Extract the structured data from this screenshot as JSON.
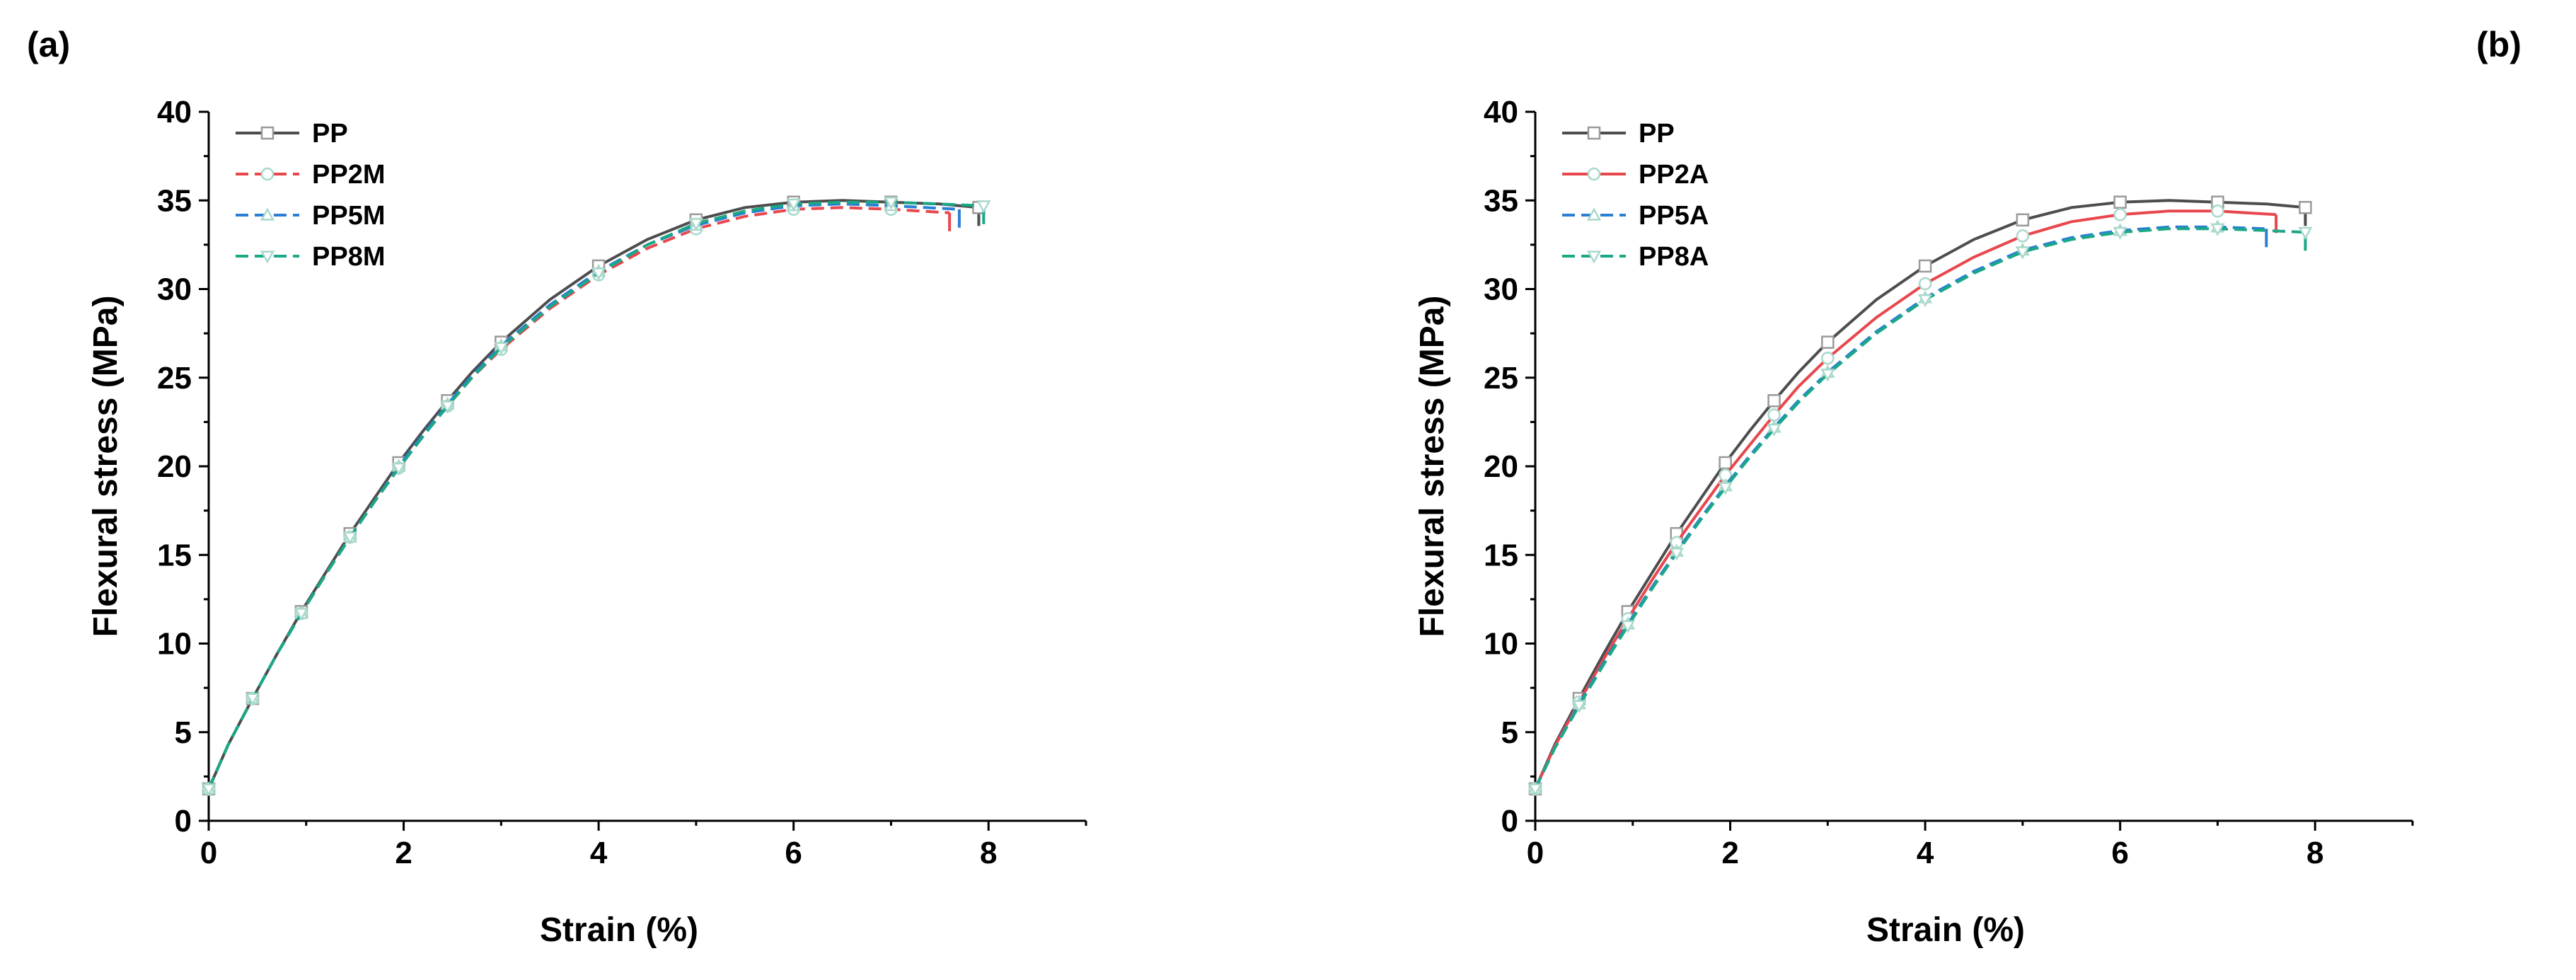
{
  "chart_data": [
    {
      "panel_label": "(a)",
      "type": "line",
      "xlabel": "Strain (%)",
      "ylabel": "Flexural stress (MPa)",
      "xlim": [
        0,
        9
      ],
      "ylim": [
        0,
        40
      ],
      "xticks": [
        0,
        2,
        4,
        6,
        8
      ],
      "yticks": [
        0,
        5,
        10,
        15,
        20,
        25,
        30,
        35,
        40
      ],
      "legend_position": "top-left",
      "series": [
        {
          "name": "PP",
          "color": "#4d4d4d",
          "marker": "square",
          "dash": "solid",
          "x": [
            0,
            0.2,
            0.45,
            0.7,
            0.95,
            1.2,
            1.45,
            1.7,
            1.95,
            2.2,
            2.45,
            2.7,
            3.0,
            3.5,
            4.0,
            4.5,
            5.0,
            5.5,
            6.0,
            6.5,
            7.0,
            7.5,
            7.9
          ],
          "y": [
            1.8,
            4.3,
            6.9,
            9.4,
            11.8,
            14.0,
            16.2,
            18.2,
            20.2,
            22.0,
            23.7,
            25.3,
            27.0,
            29.4,
            31.3,
            32.8,
            33.9,
            34.6,
            34.9,
            35.0,
            34.9,
            34.8,
            34.6
          ]
        },
        {
          "name": "PP2M",
          "color": "#e8474d",
          "marker": "circle",
          "dash": "dashed",
          "x": [
            0,
            0.2,
            0.45,
            0.7,
            0.95,
            1.2,
            1.45,
            1.7,
            1.95,
            2.2,
            2.45,
            2.7,
            3.0,
            3.5,
            4.0,
            4.5,
            5.0,
            5.5,
            6.0,
            6.5,
            7.0,
            7.6
          ],
          "y": [
            1.8,
            4.3,
            6.9,
            9.4,
            11.7,
            13.9,
            16.0,
            18.0,
            19.9,
            21.7,
            23.4,
            25.0,
            26.6,
            28.9,
            30.8,
            32.3,
            33.4,
            34.1,
            34.5,
            34.6,
            34.5,
            34.3
          ]
        },
        {
          "name": "PP5M",
          "color": "#2a7fd4",
          "marker": "triangle",
          "dash": "dashed",
          "x": [
            0,
            0.2,
            0.45,
            0.7,
            0.95,
            1.2,
            1.45,
            1.7,
            1.95,
            2.2,
            2.45,
            2.7,
            3.0,
            3.5,
            4.0,
            4.5,
            5.0,
            5.5,
            6.0,
            6.5,
            7.0,
            7.7
          ],
          "y": [
            1.8,
            4.3,
            6.9,
            9.4,
            11.7,
            13.9,
            16.0,
            18.0,
            20.0,
            21.8,
            23.5,
            25.1,
            26.8,
            29.1,
            31.0,
            32.5,
            33.6,
            34.3,
            34.7,
            34.8,
            34.7,
            34.5
          ]
        },
        {
          "name": "PP8M",
          "color": "#1aa886",
          "marker": "inverted-triangle",
          "dash": "dashed",
          "x": [
            0,
            0.2,
            0.45,
            0.7,
            0.95,
            1.2,
            1.45,
            1.7,
            1.95,
            2.2,
            2.45,
            2.7,
            3.0,
            3.5,
            4.0,
            4.5,
            5.0,
            5.5,
            6.0,
            6.5,
            7.0,
            7.5,
            7.95
          ],
          "y": [
            1.8,
            4.3,
            6.9,
            9.4,
            11.7,
            13.9,
            16.0,
            18.0,
            19.9,
            21.7,
            23.4,
            25.0,
            26.7,
            29.0,
            30.9,
            32.5,
            33.7,
            34.4,
            34.8,
            34.9,
            34.9,
            34.8,
            34.7
          ]
        }
      ]
    },
    {
      "panel_label": "(b)",
      "type": "line",
      "xlabel": "Strain (%)",
      "ylabel": "Flexural stress (MPa)",
      "xlim": [
        0,
        9
      ],
      "ylim": [
        0,
        40
      ],
      "xticks": [
        0,
        2,
        4,
        6,
        8
      ],
      "yticks": [
        0,
        5,
        10,
        15,
        20,
        25,
        30,
        35,
        40
      ],
      "legend_position": "top-left",
      "series": [
        {
          "name": "PP",
          "color": "#4d4d4d",
          "marker": "square",
          "dash": "solid",
          "x": [
            0,
            0.2,
            0.45,
            0.7,
            0.95,
            1.2,
            1.45,
            1.7,
            1.95,
            2.2,
            2.45,
            2.7,
            3.0,
            3.5,
            4.0,
            4.5,
            5.0,
            5.5,
            6.0,
            6.5,
            7.0,
            7.5,
            7.9
          ],
          "y": [
            1.8,
            4.3,
            6.9,
            9.4,
            11.8,
            14.0,
            16.2,
            18.2,
            20.2,
            22.0,
            23.7,
            25.3,
            27.0,
            29.4,
            31.3,
            32.8,
            33.9,
            34.6,
            34.9,
            35.0,
            34.9,
            34.8,
            34.6
          ]
        },
        {
          "name": "PP2A",
          "color": "#e8474d",
          "marker": "circle",
          "dash": "solid",
          "x": [
            0,
            0.2,
            0.45,
            0.7,
            0.95,
            1.2,
            1.45,
            1.7,
            1.95,
            2.2,
            2.45,
            2.7,
            3.0,
            3.5,
            4.0,
            4.5,
            5.0,
            5.5,
            6.0,
            6.5,
            7.0,
            7.6
          ],
          "y": [
            1.8,
            4.2,
            6.7,
            9.1,
            11.4,
            13.6,
            15.7,
            17.6,
            19.5,
            21.2,
            22.9,
            24.5,
            26.1,
            28.4,
            30.3,
            31.8,
            33.0,
            33.8,
            34.2,
            34.4,
            34.4,
            34.2
          ]
        },
        {
          "name": "PP5A",
          "color": "#2a7fd4",
          "marker": "triangle",
          "dash": "dashed",
          "x": [
            0,
            0.2,
            0.45,
            0.7,
            0.95,
            1.2,
            1.45,
            1.7,
            1.95,
            2.2,
            2.45,
            2.7,
            3.0,
            3.5,
            4.0,
            4.5,
            5.0,
            5.5,
            6.0,
            6.5,
            7.0,
            7.5
          ],
          "y": [
            1.8,
            4.1,
            6.6,
            8.9,
            11.1,
            13.2,
            15.2,
            17.1,
            18.9,
            20.6,
            22.2,
            23.7,
            25.3,
            27.6,
            29.5,
            31.0,
            32.2,
            32.9,
            33.3,
            33.5,
            33.5,
            33.4
          ]
        },
        {
          "name": "PP8A",
          "color": "#1aa886",
          "marker": "inverted-triangle",
          "dash": "dashed",
          "x": [
            0,
            0.2,
            0.45,
            0.7,
            0.95,
            1.2,
            1.45,
            1.7,
            1.95,
            2.2,
            2.45,
            2.7,
            3.0,
            3.5,
            4.0,
            4.5,
            5.0,
            5.5,
            6.0,
            6.5,
            7.0,
            7.5,
            7.9
          ],
          "y": [
            1.8,
            4.1,
            6.5,
            8.8,
            11.0,
            13.1,
            15.1,
            17.0,
            18.8,
            20.5,
            22.1,
            23.6,
            25.2,
            27.5,
            29.4,
            30.9,
            32.1,
            32.8,
            33.2,
            33.4,
            33.4,
            33.3,
            33.2
          ]
        }
      ]
    }
  ]
}
